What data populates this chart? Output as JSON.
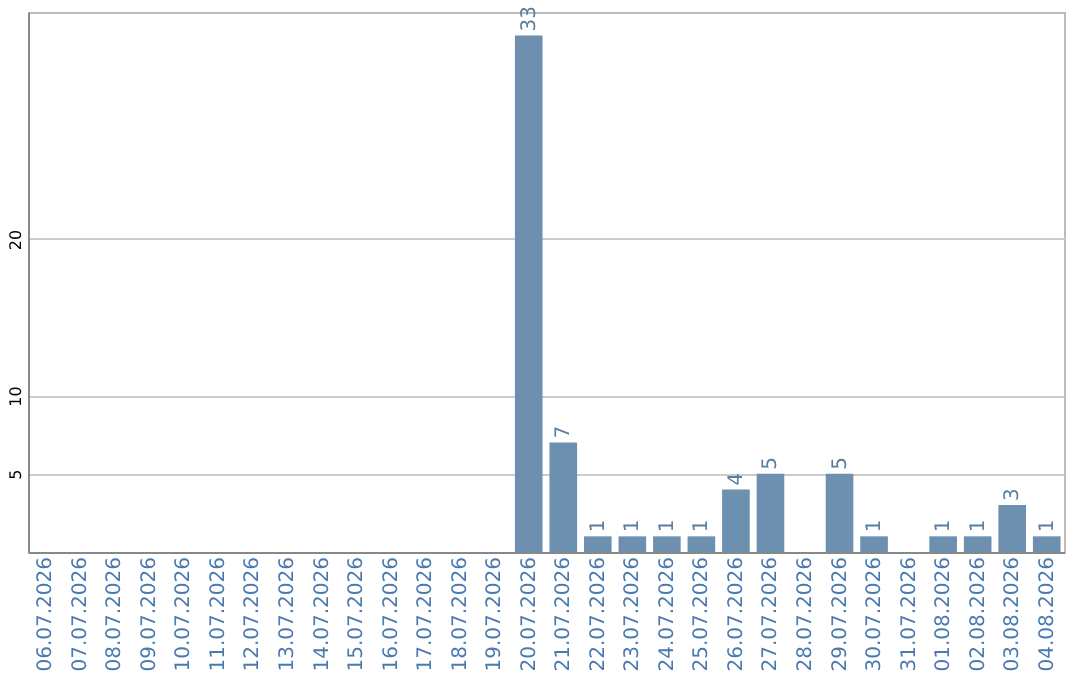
{
  "chart_data": {
    "type": "bar",
    "categories": [
      "06.07.2026",
      "07.07.2026",
      "08.07.2026",
      "09.07.2026",
      "10.07.2026",
      "11.07.2026",
      "12.07.2026",
      "13.07.2026",
      "14.07.2026",
      "15.07.2026",
      "16.07.2026",
      "17.07.2026",
      "18.07.2026",
      "19.07.2026",
      "20.07.2026",
      "21.07.2026",
      "22.07.2026",
      "23.07.2026",
      "24.07.2026",
      "25.07.2026",
      "26.07.2026",
      "27.07.2026",
      "28.07.2026",
      "29.07.2026",
      "30.07.2026",
      "31.07.2026",
      "01.08.2026",
      "02.08.2026",
      "03.08.2026",
      "04.08.2026"
    ],
    "values": [
      0,
      0,
      0,
      0,
      0,
      0,
      0,
      0,
      0,
      0,
      0,
      0,
      0,
      0,
      33,
      7,
      1,
      1,
      1,
      1,
      4,
      5,
      0,
      5,
      1,
      0,
      1,
      1,
      3,
      1
    ],
    "value_labels": [
      null,
      null,
      null,
      null,
      null,
      null,
      null,
      null,
      null,
      null,
      null,
      null,
      null,
      null,
      "33",
      "7",
      "1",
      "1",
      "1",
      "1",
      "4",
      "5",
      null,
      "5",
      "1",
      null,
      "1",
      "1",
      "3",
      "1"
    ],
    "color": "#6d8fb0",
    "ylim": [
      0,
      34.5
    ],
    "yticks": [
      5,
      10,
      20
    ],
    "grid": "y"
  }
}
